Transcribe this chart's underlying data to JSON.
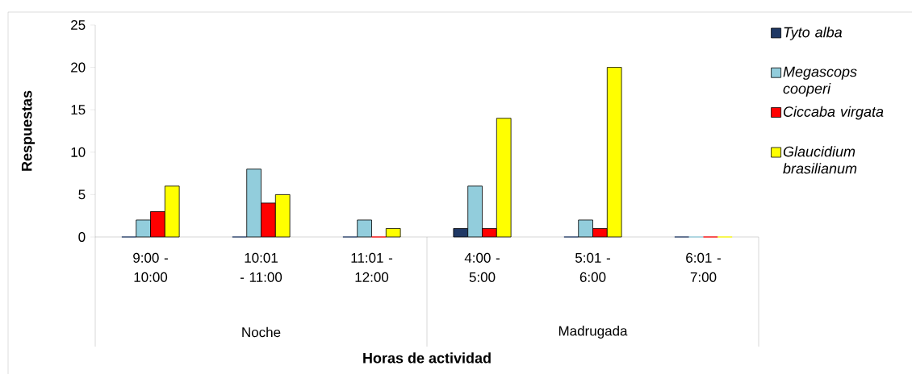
{
  "chart_data": {
    "type": "bar",
    "xlabel": "Horas de actividad",
    "ylabel": "Respuestas",
    "categories": [
      "9:00 - 10:00",
      "10:01 - 11:00",
      "11:01 - 12:00",
      "4:00 - 5:00",
      "5:01 - 6:00",
      "6:01 - 7:00"
    ],
    "annotations": [
      "Noche",
      "Madrugada"
    ],
    "series": [
      {
        "name": "Tyto alba",
        "color": "#1f3864",
        "values": [
          0,
          0,
          0,
          1,
          0,
          0
        ]
      },
      {
        "name": "Megascops cooperi",
        "color": "#92cddc",
        "values": [
          2,
          8,
          2,
          6,
          2,
          0
        ]
      },
      {
        "name": "Ciccaba virgata",
        "color": "#ff0000",
        "values": [
          3,
          4,
          0,
          1,
          1,
          0
        ]
      },
      {
        "name": "Glaucidium brasilianum",
        "color": "#ffff00",
        "values": [
          6,
          5,
          1,
          14,
          20,
          0
        ]
      }
    ],
    "ylim": [
      0,
      25
    ],
    "yticks": [
      0,
      5,
      10,
      15,
      20,
      25
    ],
    "legend": "right"
  }
}
